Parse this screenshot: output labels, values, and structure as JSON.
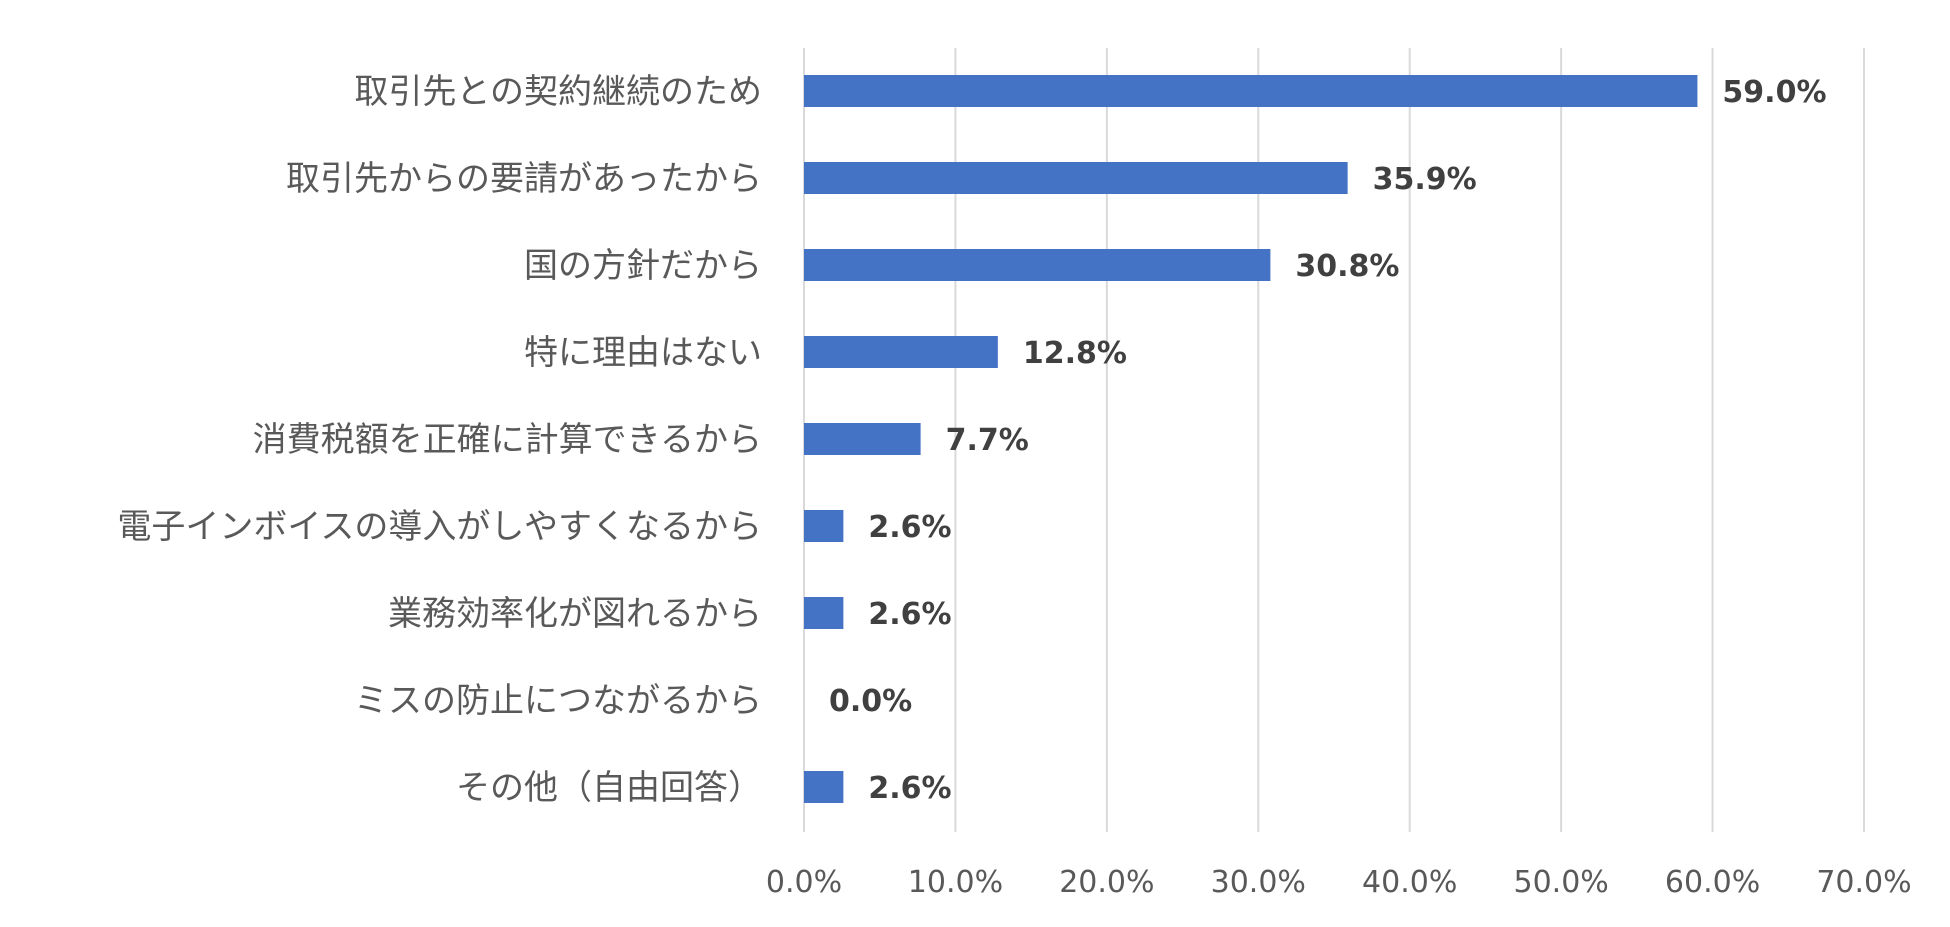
{
  "chart_data": {
    "type": "bar",
    "orientation": "horizontal",
    "categories": [
      "取引先との契約継続のため",
      "取引先からの要請があったから",
      "国の方針だから",
      "特に理由はない",
      "消費税額を正確に計算できるから",
      "電子インボイスの導入がしやすくなるから",
      "業務効率化が図れるから",
      "ミスの防止につながるから",
      "その他（自由回答）"
    ],
    "values": [
      59.0,
      35.9,
      30.8,
      12.8,
      7.7,
      2.6,
      2.6,
      0.0,
      2.6
    ],
    "data_labels": [
      "59.0%",
      "35.9%",
      "30.8%",
      "12.8%",
      "7.7%",
      "2.6%",
      "2.6%",
      "0.0%",
      "2.6%"
    ],
    "xlim": [
      0,
      70
    ],
    "x_ticks": [
      "0.0%",
      "10.0%",
      "20.0%",
      "30.0%",
      "40.0%",
      "50.0%",
      "60.0%",
      "70.0%"
    ],
    "grid": "vertical",
    "bar_color": "#4472c4",
    "title": "",
    "xlabel": "",
    "ylabel": ""
  }
}
